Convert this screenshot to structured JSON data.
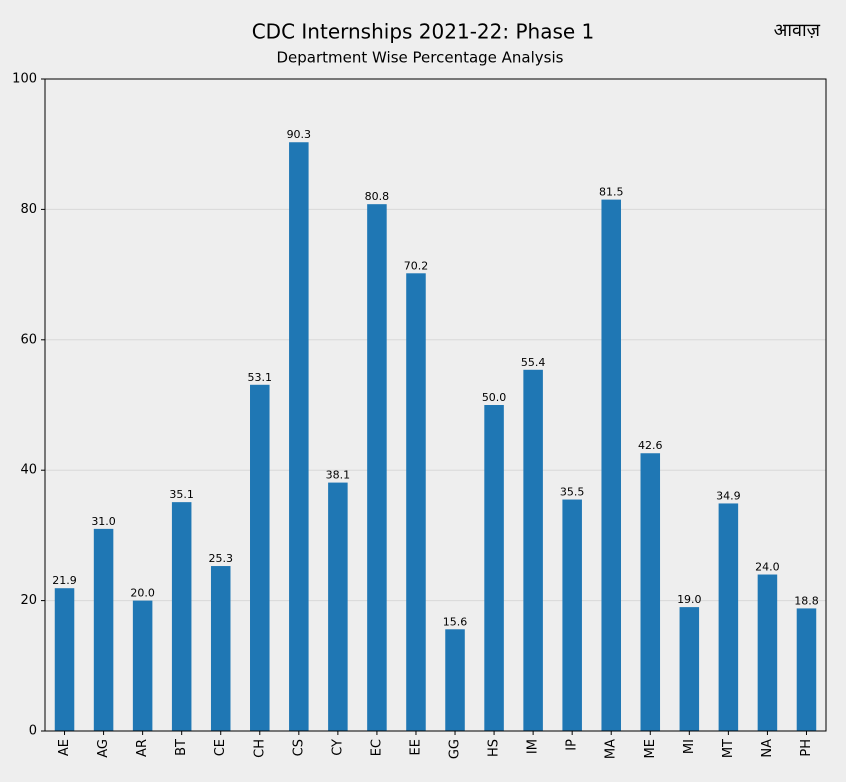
{
  "chart_data": {
    "type": "bar",
    "title": "CDC Internships 2021-22: Phase 1",
    "subtitle": "Department Wise Percentage Analysis",
    "watermark": "आवाज़",
    "categories": [
      "AE",
      "AG",
      "AR",
      "BT",
      "CE",
      "CH",
      "CS",
      "CY",
      "EC",
      "EE",
      "GG",
      "HS",
      "IM",
      "IP",
      "MA",
      "ME",
      "MI",
      "MT",
      "NA",
      "PH"
    ],
    "values": [
      21.9,
      31.0,
      20.0,
      35.1,
      25.3,
      53.1,
      90.3,
      38.1,
      80.8,
      70.2,
      15.6,
      50.0,
      55.4,
      35.5,
      81.5,
      42.6,
      19.0,
      34.9,
      24.0,
      18.8
    ],
    "value_labels": [
      "21.9",
      "31.0",
      "20.0",
      "35.1",
      "25.3",
      "53.1",
      "90.3",
      "38.1",
      "80.8",
      "70.2",
      "15.6",
      "50.0",
      "55.4",
      "35.5",
      "81.5",
      "42.6",
      "19.0",
      "34.9",
      "24.0",
      "18.8"
    ],
    "color": "#1f77b4",
    "ylim": [
      0,
      100
    ],
    "yticks": [
      0,
      20,
      40,
      60,
      80,
      100
    ],
    "grid": true
  }
}
